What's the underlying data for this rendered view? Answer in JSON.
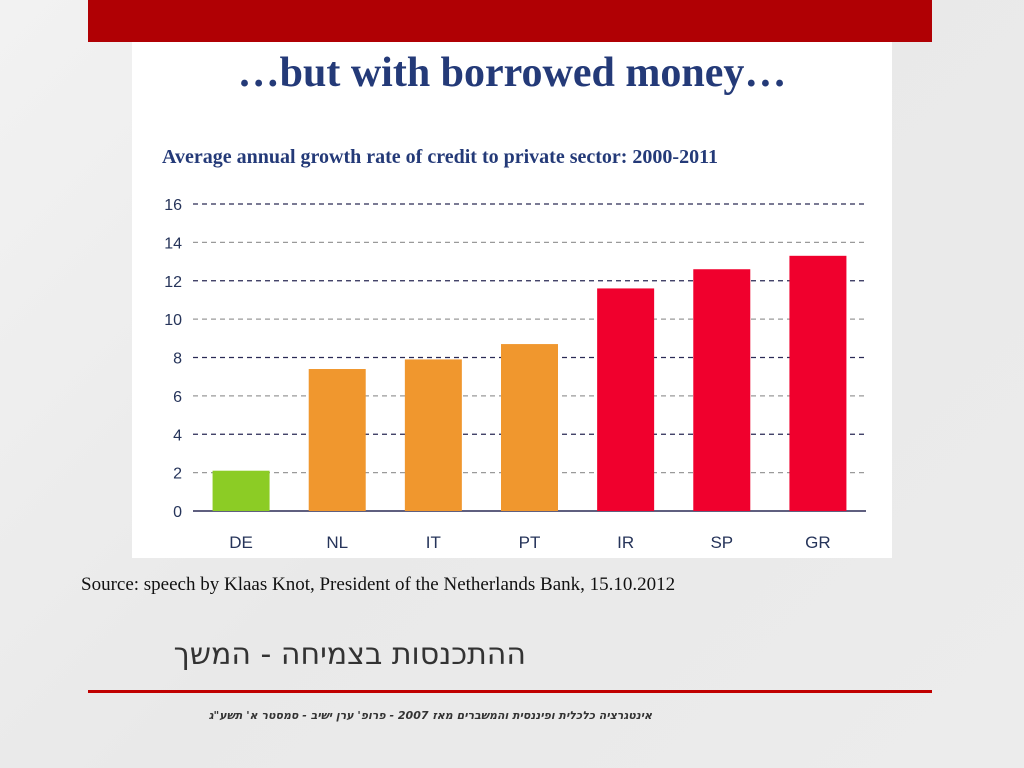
{
  "slide": {
    "title": "…but with borrowed money…",
    "source": "Source: speech by Klaas Knot, President of the Netherlands Bank, 15.10.2012",
    "hebrew_title": "ההתכנסות בצמיחה - המשך",
    "footer": "אינטגרציה כלכלית ופיננסית והמשברים מאז 2007 - פרופ' ערן ישיב - סמסטר א' תשע\"ג"
  },
  "colors": {
    "top_bar": "#b00004",
    "title_text": "#243a78",
    "bottom_line": "#c00000"
  },
  "chart_data": {
    "type": "bar",
    "title": "Average annual growth rate of credit to private sector: 2000-2011",
    "xlabel": "",
    "ylabel": "",
    "categories": [
      "DE",
      "NL",
      "IT",
      "PT",
      "IR",
      "SP",
      "GR"
    ],
    "values": [
      2.1,
      7.4,
      7.9,
      8.7,
      11.6,
      12.6,
      13.3
    ],
    "bar_colors": [
      "#8ccc25",
      "#f0972e",
      "#f0972e",
      "#f0972e",
      "#f0002d",
      "#f0002d",
      "#f0002d"
    ],
    "ylim": [
      0,
      16
    ],
    "yticks": [
      0,
      2,
      4,
      6,
      8,
      10,
      12,
      14,
      16
    ],
    "grid": true,
    "legend": "none"
  }
}
